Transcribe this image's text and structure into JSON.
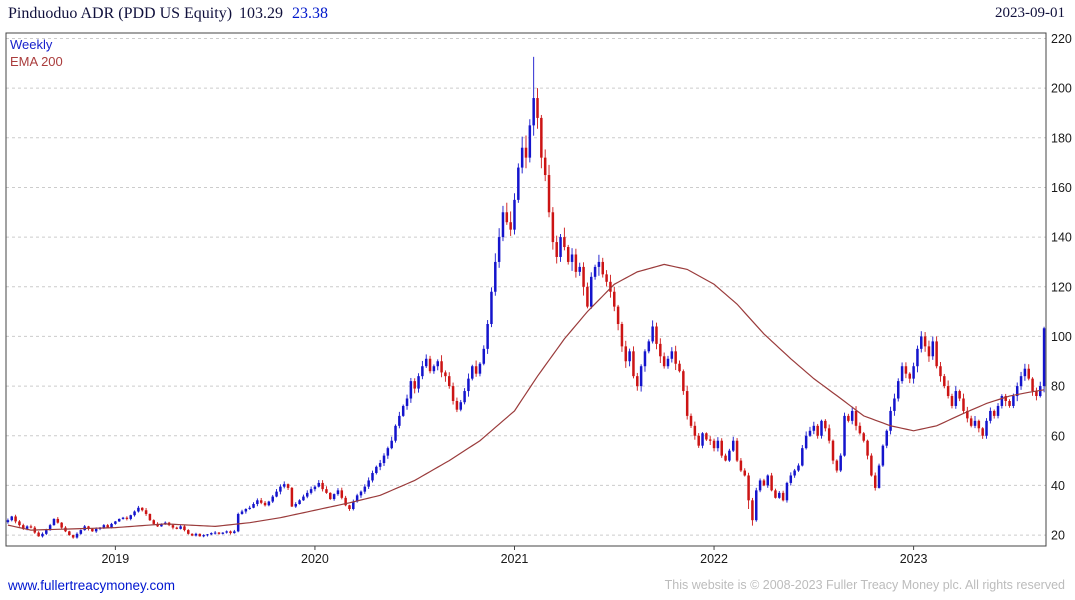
{
  "header": {
    "instrument": "Pinduoduo ADR (PDD US Equity)",
    "last_price": "103.29",
    "change": "23.38",
    "date": "2023-09-01"
  },
  "legend": {
    "timeframe": "Weekly",
    "overlay": "EMA 200"
  },
  "footer": {
    "site_link": "www.fullertreacymoney.com",
    "copyright": "This website is © 2008-2023 Fuller Treacy Money plc. All rights reserved"
  },
  "chart_data": {
    "type": "candlestick",
    "title": "Pinduoduo ADR (PDD US Equity)",
    "timeframe": "weekly",
    "legend": [
      "Weekly",
      "EMA 200"
    ],
    "xlabel": "",
    "ylabel": "",
    "grid": "horizontal-dashed",
    "ylim": [
      15.6,
      222.2
    ],
    "y_ticks": [
      220,
      200,
      180,
      160,
      140,
      120,
      100,
      80,
      60,
      40,
      20
    ],
    "x_ticks": [
      {
        "label": "2019",
        "week": 28
      },
      {
        "label": "2020",
        "week": 80
      },
      {
        "label": "2021",
        "week": 132
      },
      {
        "label": "2022",
        "week": 184
      },
      {
        "label": "2023",
        "week": 236
      }
    ],
    "weekly_closes": [
      26,
      27.5,
      25.5,
      24,
      22.5,
      23.5,
      23,
      21,
      19.5,
      20.5,
      22,
      24,
      26.5,
      25,
      23,
      21.5,
      20,
      19,
      20.5,
      22,
      23.5,
      22.5,
      21.5,
      22.5,
      23,
      24,
      23,
      24.5,
      25.5,
      26.5,
      27,
      26.5,
      28,
      29.5,
      31,
      30,
      28.5,
      26,
      24.5,
      23.5,
      24.5,
      25,
      24,
      23,
      22.5,
      23.5,
      22,
      20.5,
      19.8,
      20.5,
      19.5,
      20,
      20.3,
      20.8,
      21,
      20.5,
      21,
      21.5,
      20.8,
      21.5,
      28.5,
      29.5,
      30.5,
      31,
      32.5,
      34,
      33,
      32,
      33.5,
      35.5,
      37.5,
      39.5,
      40.5,
      39,
      31.5,
      32.5,
      34,
      35.5,
      37,
      38.5,
      39.5,
      41,
      38.5,
      37,
      34.5,
      36.5,
      38,
      35,
      32,
      30.5,
      33.5,
      36,
      37.5,
      39.5,
      42,
      45,
      47.5,
      49,
      52,
      55,
      58,
      64,
      68,
      72,
      75,
      82,
      79,
      84,
      88,
      91,
      86,
      88,
      90,
      85.5,
      84,
      80,
      74,
      70.5,
      73.5,
      78,
      83,
      88,
      85,
      89,
      95,
      105,
      118,
      130,
      140,
      150,
      146,
      143,
      155,
      168,
      176,
      172,
      185,
      196,
      188,
      172,
      165,
      150,
      138,
      132,
      140,
      136,
      130,
      133,
      126,
      128,
      120,
      112,
      124,
      128,
      130,
      125,
      122,
      118,
      112,
      105,
      96,
      90,
      94,
      84,
      80,
      88,
      94,
      98,
      104,
      97,
      92,
      88,
      91,
      94,
      89,
      86,
      78,
      68,
      64,
      60,
      56,
      61,
      58.5,
      58,
      55,
      58,
      52,
      50,
      54,
      58,
      50,
      46,
      44,
      34,
      26,
      38,
      42,
      40,
      44,
      38,
      35,
      37,
      34,
      41,
      44,
      46,
      48,
      55,
      60,
      62,
      64,
      60,
      66,
      63,
      58,
      50,
      46,
      52,
      68,
      66,
      70,
      64,
      61,
      58,
      52,
      44,
      39,
      48,
      56,
      62,
      70,
      75,
      82,
      88,
      85,
      83,
      88,
      95,
      100,
      96,
      92,
      98,
      88,
      84,
      80,
      76,
      72,
      78,
      75,
      70,
      67,
      64,
      66,
      63,
      60,
      66,
      70,
      68,
      72,
      76,
      74,
      72,
      76,
      80,
      84,
      87,
      83,
      78,
      76,
      80,
      103.29
    ],
    "extremes": [
      {
        "week": 137,
        "high": 212.6
      },
      {
        "week": 138,
        "high": 200
      },
      {
        "week": 193,
        "low": 30.5
      },
      {
        "week": 194,
        "low": 23.8
      },
      {
        "week": 270,
        "open": 80,
        "high": 103.9,
        "low": 77.5
      }
    ],
    "ema_anchors": [
      [
        0,
        24
      ],
      [
        6,
        22
      ],
      [
        28,
        23
      ],
      [
        41,
        24.5
      ],
      [
        54,
        23.5
      ],
      [
        63,
        25
      ],
      [
        71,
        27
      ],
      [
        80,
        30
      ],
      [
        89,
        33
      ],
      [
        97,
        36
      ],
      [
        106,
        42
      ],
      [
        115,
        50
      ],
      [
        123,
        58
      ],
      [
        132,
        70
      ],
      [
        138,
        84
      ],
      [
        145,
        99
      ],
      [
        151,
        110
      ],
      [
        158,
        121
      ],
      [
        164,
        126
      ],
      [
        171,
        129
      ],
      [
        177,
        127
      ],
      [
        184,
        121
      ],
      [
        190,
        113
      ],
      [
        197,
        101
      ],
      [
        204,
        91
      ],
      [
        210,
        83
      ],
      [
        217,
        75
      ],
      [
        223,
        68
      ],
      [
        230,
        64
      ],
      [
        236,
        62
      ],
      [
        242,
        64
      ],
      [
        249,
        69
      ],
      [
        255,
        73
      ],
      [
        261,
        76
      ],
      [
        266,
        77.5
      ],
      [
        270,
        78.5
      ]
    ],
    "colors": {
      "up": "#1414cc",
      "down": "#cc1414",
      "ema": "#9a3b3b",
      "grid": "#cccccc",
      "frame": "#444444",
      "tick_text": "#1a1a1a"
    }
  }
}
